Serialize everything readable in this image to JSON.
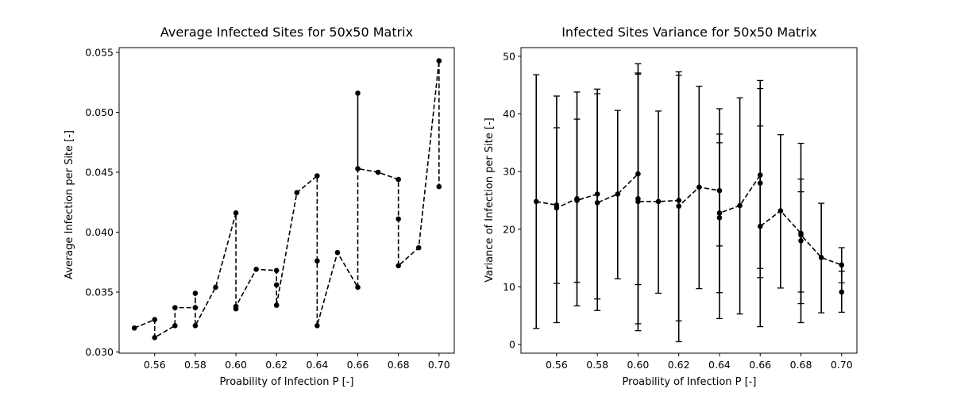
{
  "chart_data": [
    {
      "type": "line",
      "title": "Average Infected Sites for 50x50 Matrix",
      "xlabel": "Proability of Infection P [-]",
      "ylabel": "Average Infection per Site [-]",
      "xlim": [
        0.5425,
        0.7075
      ],
      "ylim": [
        0.0299,
        0.0554
      ],
      "xticks": [
        "0.56",
        "0.58",
        "0.60",
        "0.62",
        "0.64",
        "0.66",
        "0.68",
        "0.70"
      ],
      "yticks": [
        "0.030",
        "0.035",
        "0.040",
        "0.045",
        "0.050",
        "0.055"
      ],
      "grid": false,
      "series": [
        {
          "line_style": "dashed",
          "marker": "circle",
          "color": "#000000",
          "points": [
            [
              0.55,
              0.032
            ],
            [
              0.56,
              0.0327
            ],
            [
              0.56,
              0.0312
            ],
            [
              0.57,
              0.0322
            ],
            [
              0.57,
              0.0337
            ],
            [
              0.58,
              0.0337
            ],
            [
              0.58,
              0.0349
            ],
            [
              0.58,
              0.0322
            ],
            [
              0.59,
              0.0354
            ],
            [
              0.6,
              0.0416
            ],
            [
              0.6,
              0.0336
            ],
            [
              0.6,
              0.0338
            ],
            [
              0.61,
              0.0369
            ],
            [
              0.62,
              0.0368
            ],
            [
              0.62,
              0.0356
            ],
            [
              0.62,
              0.0339
            ],
            [
              0.63,
              0.0433
            ],
            [
              0.64,
              0.0447
            ],
            [
              0.64,
              0.0376
            ],
            [
              0.64,
              0.0322
            ],
            [
              0.65,
              0.0383
            ],
            [
              0.66,
              0.0354
            ],
            [
              0.66,
              0.0516
            ],
            [
              0.66,
              0.0453
            ],
            [
              0.67,
              0.045
            ],
            [
              0.68,
              0.0444
            ],
            [
              0.68,
              0.0411
            ],
            [
              0.68,
              0.0372
            ],
            [
              0.69,
              0.0387
            ],
            [
              0.7,
              0.0543
            ],
            [
              0.7,
              0.0438
            ]
          ]
        }
      ]
    },
    {
      "type": "line",
      "title": "Infected Sites Variance for 50x50 Matrix",
      "xlabel": "Proability of Infection P [-]",
      "ylabel": "Variance of Infection per Site [-]",
      "xlim": [
        0.5425,
        0.7075
      ],
      "ylim": [
        -1.5,
        51.5
      ],
      "xticks": [
        "0.56",
        "0.58",
        "0.60",
        "0.62",
        "0.64",
        "0.66",
        "0.68",
        "0.70"
      ],
      "yticks": [
        "0",
        "10",
        "20",
        "30",
        "40",
        "50"
      ],
      "grid": false,
      "series": [
        {
          "line_style": "dashed",
          "marker": "circle",
          "color": "#000000",
          "error_bars": true,
          "points": [
            {
              "x": 0.55,
              "y": 24.8,
              "lo": 2.8,
              "hi": 46.8
            },
            {
              "x": 0.56,
              "y": 24.2,
              "lo": 10.6,
              "hi": 37.6
            },
            {
              "x": 0.56,
              "y": 23.7,
              "lo": 3.8,
              "hi": 43.1
            },
            {
              "x": 0.57,
              "y": 25.3,
              "lo": 10.8,
              "hi": 39.1
            },
            {
              "x": 0.57,
              "y": 25.0,
              "lo": 6.7,
              "hi": 43.8
            },
            {
              "x": 0.58,
              "y": 26.1,
              "lo": 7.9,
              "hi": 44.3
            },
            {
              "x": 0.58,
              "y": 24.6,
              "lo": 5.9,
              "hi": 43.5
            },
            {
              "x": 0.59,
              "y": 26.1,
              "lo": 11.4,
              "hi": 40.6
            },
            {
              "x": 0.6,
              "y": 29.6,
              "lo": 10.4,
              "hi": 48.7
            },
            {
              "x": 0.6,
              "y": 25.3,
              "lo": 3.6,
              "hi": 47.1
            },
            {
              "x": 0.6,
              "y": 24.8,
              "lo": 2.4,
              "hi": 46.9
            },
            {
              "x": 0.61,
              "y": 24.8,
              "lo": 8.9,
              "hi": 40.5
            },
            {
              "x": 0.62,
              "y": 25.0,
              "lo": 4.1,
              "hi": 47.3
            },
            {
              "x": 0.62,
              "y": 24.0,
              "lo": 0.5,
              "hi": 46.7
            },
            {
              "x": 0.63,
              "y": 27.3,
              "lo": 9.7,
              "hi": 44.8
            },
            {
              "x": 0.64,
              "y": 26.7,
              "lo": 17.1,
              "hi": 36.5
            },
            {
              "x": 0.64,
              "y": 22.0,
              "lo": 9.0,
              "hi": 35.0
            },
            {
              "x": 0.64,
              "y": 22.8,
              "lo": 4.5,
              "hi": 40.9
            },
            {
              "x": 0.65,
              "y": 24.1,
              "lo": 5.3,
              "hi": 42.8
            },
            {
              "x": 0.66,
              "y": 29.4,
              "lo": 13.2,
              "hi": 45.8
            },
            {
              "x": 0.66,
              "y": 28.0,
              "lo": 11.6,
              "hi": 44.4
            },
            {
              "x": 0.66,
              "y": 20.5,
              "lo": 3.1,
              "hi": 37.9
            },
            {
              "x": 0.67,
              "y": 23.2,
              "lo": 9.8,
              "hi": 36.4
            },
            {
              "x": 0.68,
              "y": 19.3,
              "lo": 9.1,
              "hi": 28.7
            },
            {
              "x": 0.68,
              "y": 18.0,
              "lo": 7.1,
              "hi": 26.5
            },
            {
              "x": 0.68,
              "y": 19.0,
              "lo": 3.8,
              "hi": 34.9
            },
            {
              "x": 0.69,
              "y": 15.1,
              "lo": 5.5,
              "hi": 24.5
            },
            {
              "x": 0.7,
              "y": 13.8,
              "lo": 10.7,
              "hi": 16.8
            },
            {
              "x": 0.7,
              "y": 9.1,
              "lo": 5.6,
              "hi": 12.7
            }
          ]
        }
      ]
    }
  ]
}
